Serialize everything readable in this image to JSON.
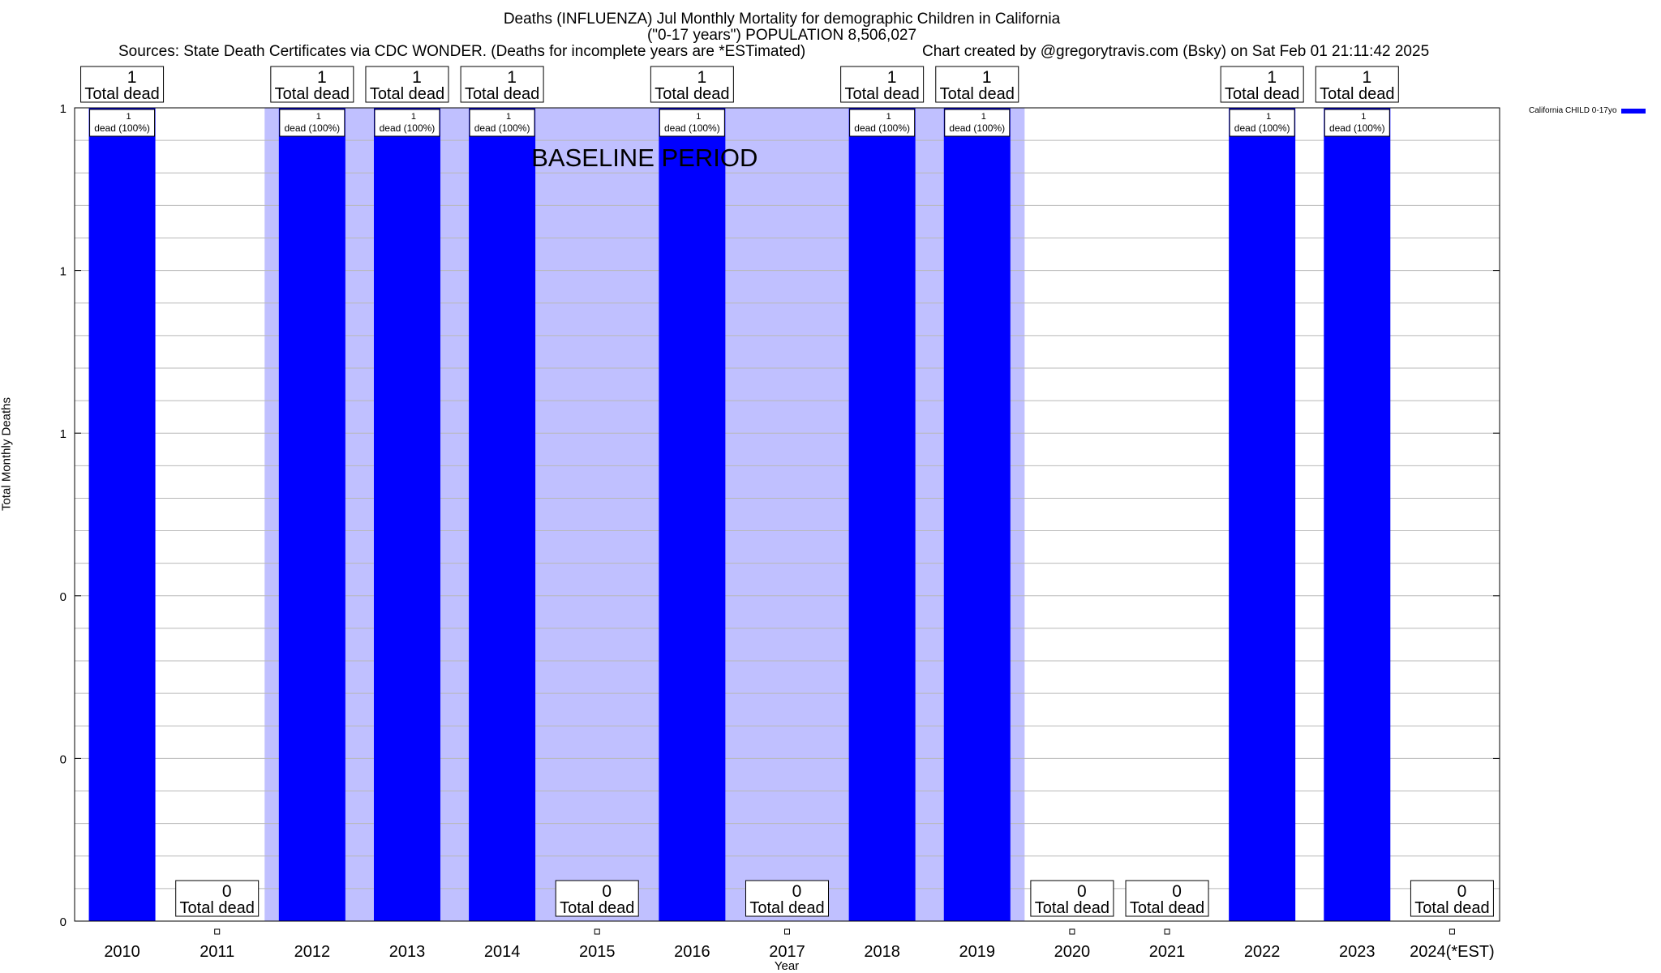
{
  "title": {
    "line1": "Deaths (INFLUENZA) Jul Monthly Mortality for demographic Children in California",
    "line2": "(\"0-17 years\") POPULATION 8,506,027",
    "sources": "Sources: State Death Certificates via CDC WONDER. (Deaths for incomplete years are *ESTimated)",
    "credit": "Chart created by @gregorytravis.com (Bsky) on Sat Feb 01 21:11:42 2025"
  },
  "chart_data": {
    "type": "bar",
    "title": "Deaths (INFLUENZA) Jul Monthly Mortality for demographic Children in California",
    "xlabel": "Year",
    "ylabel": "Total Monthly Deaths",
    "categories": [
      "2010",
      "2011",
      "2012",
      "2013",
      "2014",
      "2015",
      "2016",
      "2017",
      "2018",
      "2019",
      "2020",
      "2021",
      "2022",
      "2023",
      "2024(*EST)"
    ],
    "series": [
      {
        "name": "California CHILD 0-17yo",
        "color": "#0000ff",
        "values": [
          1,
          0,
          1,
          1,
          1,
          0,
          1,
          0,
          1,
          1,
          0,
          0,
          1,
          1,
          0
        ]
      }
    ],
    "total_labels": [
      "1",
      "0",
      "1",
      "1",
      "1",
      "0",
      "1",
      "0",
      "1",
      "1",
      "0",
      "0",
      "1",
      "1",
      "0"
    ],
    "total_suffix": "Total dead",
    "bar_labels": [
      "1",
      "",
      "1",
      "1",
      "1",
      "",
      "1",
      "",
      "1",
      "1",
      "",
      "",
      "1",
      "1",
      ""
    ],
    "bar_suffix": "dead (100%)",
    "ylim": [
      0,
      1
    ],
    "yticks": [
      {
        "value": 0,
        "label": "0"
      },
      {
        "value": 0.2,
        "label": "0"
      },
      {
        "value": 0.4,
        "label": "0"
      },
      {
        "value": 0.6,
        "label": "1"
      },
      {
        "value": 0.8,
        "label": "1"
      },
      {
        "value": 1.0,
        "label": "1"
      }
    ],
    "baseline": {
      "label": "BASELINE PERIOD",
      "start": "2012",
      "end": "2019",
      "color": "#c0c0ff"
    },
    "grid": true,
    "legend_position": "top-right"
  }
}
